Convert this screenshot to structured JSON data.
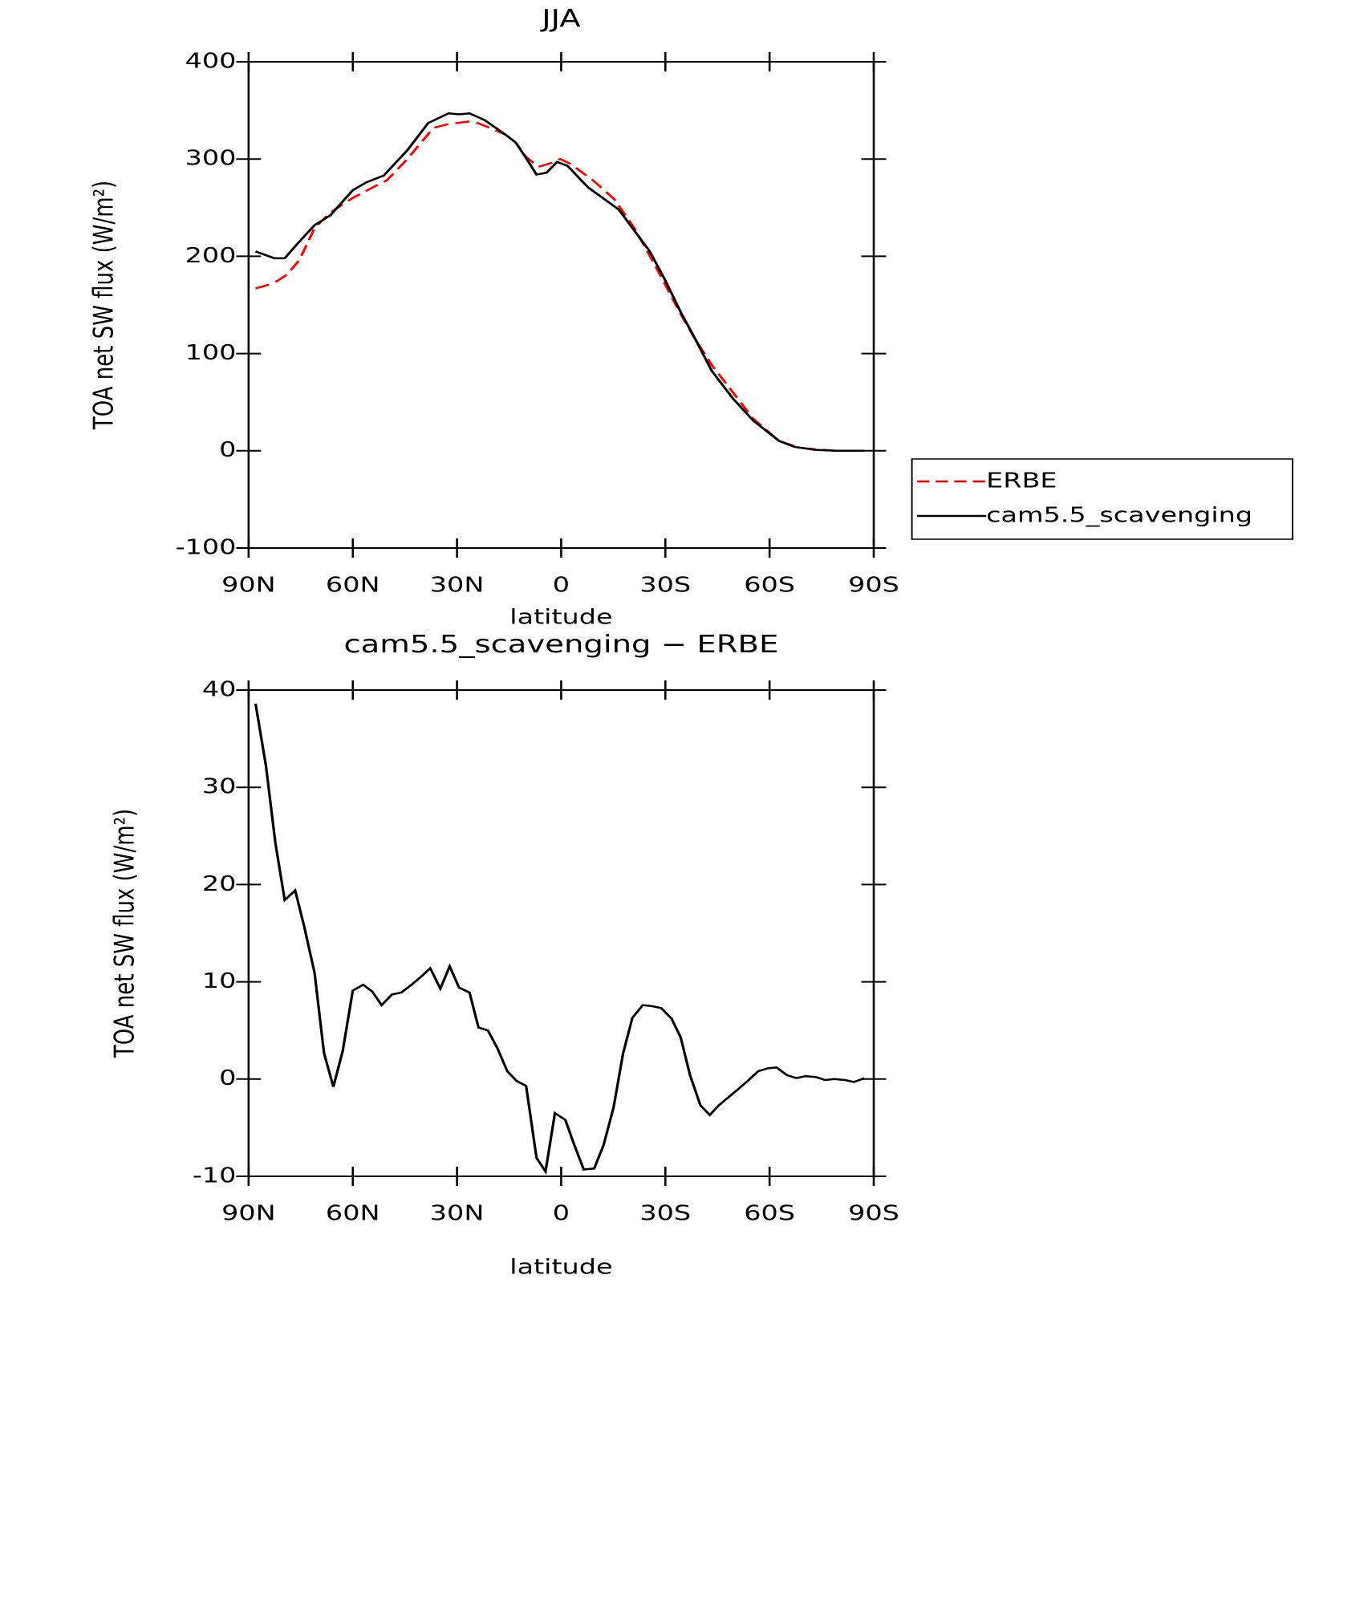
{
  "chart_data": [
    {
      "type": "line",
      "title": "JJA",
      "xlabel": "latitude",
      "ylabel": "TOA net SW flux (W/m²)",
      "xlim": [
        90,
        -90
      ],
      "xticks": [
        {
          "value": 90,
          "label": "90N"
        },
        {
          "value": 60,
          "label": "60N"
        },
        {
          "value": 30,
          "label": "30N"
        },
        0,
        {
          "value": -30,
          "label": "30S"
        },
        {
          "value": -60,
          "label": "60S"
        },
        {
          "value": -90,
          "label": "90S"
        }
      ],
      "ylim": [
        -100,
        400
      ],
      "yticks": [
        -100,
        0,
        100,
        200,
        300,
        400
      ],
      "legend": "outside-right",
      "series": [
        {
          "name": "ERBE",
          "color": "#ff0000",
          "line_style": "dashed",
          "x": [
            88,
            82.9,
            79,
            75.4,
            71,
            66.5,
            60,
            54.7,
            50.2,
            44.3,
            36.8,
            32.4,
            25.5,
            20.5,
            16,
            13.1,
            10.1,
            6.5,
            2.7,
            0.3,
            -2.7,
            -9.2,
            -15.2,
            -21.1,
            -27,
            -34.5,
            -38.9,
            -43.4,
            -55.3,
            -62.8,
            -68.7,
            -79,
            -87.3
          ],
          "values": [
            167,
            172,
            181,
            196,
            229,
            245,
            260,
            270,
            278,
            300,
            332,
            336,
            339,
            332,
            325,
            317,
            302,
            292,
            296,
            300,
            295,
            278,
            259,
            229,
            191,
            140,
            113,
            88,
            33,
            10,
            3,
            0,
            0
          ]
        },
        {
          "name": "cam5.5_scavenging",
          "color": "#000000",
          "line_style": "solid",
          "x": [
            88,
            82.6,
            79.6,
            75.4,
            71,
            66.5,
            60,
            56.1,
            51.1,
            44.3,
            38.3,
            32.4,
            29.4,
            26.4,
            22,
            16,
            13.1,
            10.1,
            7.1,
            4.2,
            1.2,
            -1.8,
            -7.7,
            -16.6,
            -25.5,
            -30,
            -34.5,
            -38.9,
            -43.4,
            -49.4,
            -55.3,
            -62.8,
            -67.2,
            -73.1,
            -79,
            -87.3
          ],
          "values": [
            205,
            198,
            198,
            215,
            232,
            242,
            268,
            276,
            283,
            309,
            337,
            347,
            346,
            347,
            340,
            325,
            317,
            301,
            284,
            286,
            297,
            293,
            271,
            248,
            205,
            175,
            142,
            113,
            82,
            54,
            31,
            10,
            4,
            1,
            0,
            0
          ]
        }
      ]
    },
    {
      "type": "line",
      "title": "cam5.5_scavenging − ERBE",
      "xlabel": "latitude",
      "ylabel": "TOA net SW flux (W/m²)",
      "xlim": [
        90,
        -90
      ],
      "xticks": [
        {
          "value": 90,
          "label": "90N"
        },
        {
          "value": 60,
          "label": "60N"
        },
        {
          "value": 30,
          "label": "30N"
        },
        0,
        {
          "value": -30,
          "label": "30S"
        },
        {
          "value": -60,
          "label": "60S"
        },
        {
          "value": -90,
          "label": "90S"
        }
      ],
      "ylim": [
        -10,
        40
      ],
      "yticks": [
        -10,
        0,
        10,
        20,
        30,
        40
      ],
      "series": [
        {
          "color": "#000000",
          "line_style": "solid",
          "x": [
            88,
            85,
            82.3,
            79.6,
            76.6,
            74,
            71,
            68.3,
            65.6,
            62.9,
            60,
            57,
            54.4,
            51.7,
            48.7,
            46,
            43.1,
            40.4,
            37.7,
            34.8,
            32.1,
            29.4,
            26.4,
            23.8,
            21.1,
            18.4,
            15.5,
            12.8,
            10.1,
            7.1,
            4.5,
            1.8,
            -1.2,
            -3.8,
            -6.5,
            -9.5,
            -12.2,
            -15.1,
            -17.8,
            -20.5,
            -23.5,
            -26.1,
            -28.8,
            -31.8,
            -34.4,
            -37.1,
            -40.1,
            -42.8,
            -45.4,
            -48.4,
            -51.1,
            -53.7,
            -56.7,
            -59.4,
            -62,
            -65,
            -67.7,
            -70.4,
            -73.4,
            -76,
            -78.7,
            -81.7,
            -84.3,
            -87.3
          ],
          "values": [
            38.6,
            32.2,
            24.3,
            18.4,
            19.4,
            15.7,
            10.9,
            2.7,
            -0.8,
            2.9,
            9.1,
            9.7,
            9,
            7.6,
            8.7,
            8.9,
            9.7,
            10.5,
            11.4,
            9.3,
            11.6,
            9.4,
            8.9,
            5.3,
            5,
            3.2,
            0.8,
            -0.2,
            -0.7,
            -8.1,
            -9.5,
            -3.5,
            -4.2,
            -6.8,
            -9.3,
            -9.2,
            -6.8,
            -2.9,
            2.6,
            6.3,
            7.6,
            7.5,
            7.3,
            6.2,
            4.3,
            0.4,
            -2.7,
            -3.7,
            -2.7,
            -1.8,
            -1,
            -0.2,
            0.8,
            1.1,
            1.2,
            0.4,
            0.1,
            0.3,
            0.2,
            -0.1,
            0,
            -0.1,
            -0.3,
            0.1
          ]
        }
      ]
    }
  ]
}
